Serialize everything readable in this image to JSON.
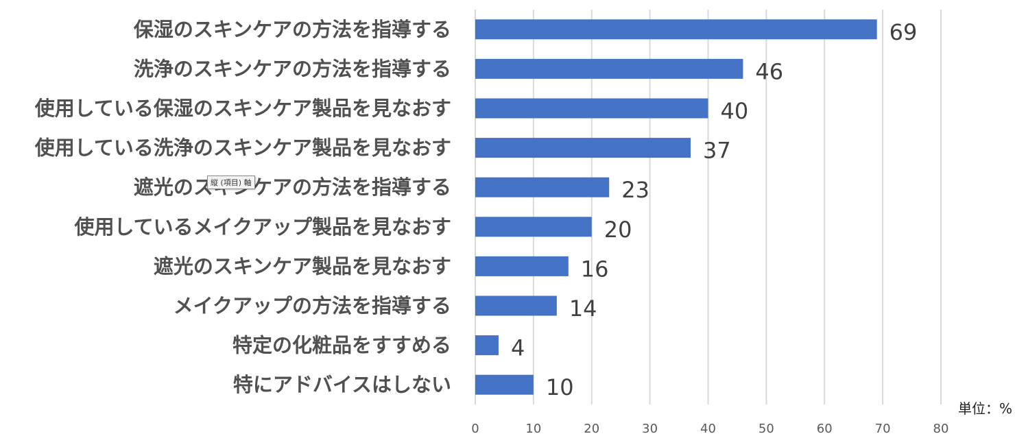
{
  "chart_data": {
    "type": "bar",
    "orientation": "horizontal",
    "categories": [
      "保湿のスキンケアの方法を指導する",
      "洗浄のスキンケアの方法を指導する",
      "使用している保湿のスキンケア製品を見なおす",
      "使用している洗浄のスキンケア製品を見なおす",
      "遮光のスキンケアの方法を指導する",
      "使用しているメイクアップ製品を見なおす",
      "遮光のスキンケア製品を見なおす",
      "メイクアップの方法を指導する",
      "特定の化粧品をすすめる",
      "特にアドバイスはしない"
    ],
    "values": [
      69,
      46,
      40,
      37,
      23,
      20,
      16,
      14,
      4,
      10
    ],
    "xlim": [
      0,
      80
    ],
    "xticks": [
      0,
      10,
      20,
      30,
      40,
      50,
      60,
      70,
      80
    ],
    "grid": "vertical",
    "legend": "none",
    "unit_label": "単位：%",
    "bar_color": "#4472c4"
  },
  "tooltip": {
    "text": "縦 (項目) 軸"
  }
}
